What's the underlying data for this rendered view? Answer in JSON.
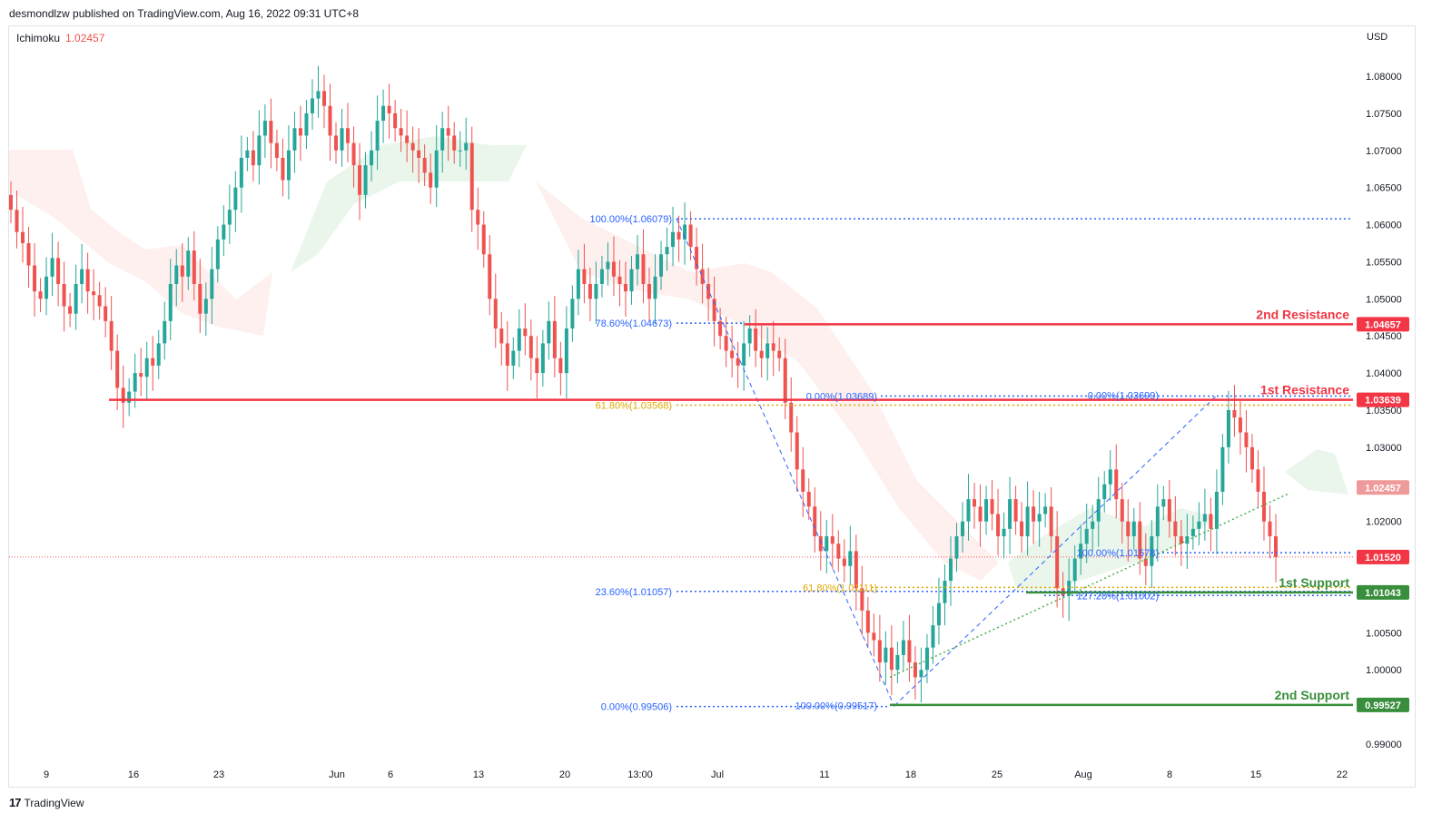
{
  "header": {
    "publish_line": "desmondlzw published on TradingView.com, Aug 16, 2022 09:31 UTC+8"
  },
  "indicator": {
    "name": "Ichimoku",
    "value": "1.02457"
  },
  "axis": {
    "currency": "USD"
  },
  "footer": {
    "brand": "TradingView"
  },
  "colors": {
    "up": "#26a69a",
    "down": "#ef5350",
    "resistance": "#f23645",
    "support": "#388e3c",
    "fib": "#2962ff",
    "fib_gold": "#e0a800",
    "cloud_bull": "#e8f5e9",
    "cloud_bear": "#fdecea"
  },
  "chart_data": {
    "type": "candlestick",
    "y_ticks": [
      "1.08000",
      "1.07500",
      "1.07000",
      "1.06500",
      "1.06000",
      "1.05500",
      "1.05000",
      "1.04500",
      "1.04000",
      "1.03500",
      "1.03000",
      "1.02500",
      "1.02000",
      "1.01500",
      "1.01000",
      "1.00500",
      "1.00000",
      "0.99500",
      "0.99000"
    ],
    "y_tick_values": [
      1.08,
      1.075,
      1.07,
      1.065,
      1.06,
      1.055,
      1.05,
      1.045,
      1.04,
      1.035,
      1.03,
      1.025,
      1.02,
      1.015,
      1.01,
      1.005,
      1.0,
      0.995,
      0.99
    ],
    "ylim": [
      0.9875,
      1.0855
    ],
    "x_ticks": [
      "9",
      "16",
      "23",
      "Jun",
      "6",
      "13",
      "20",
      "13:00",
      "Jul",
      "11",
      "18",
      "25",
      "Aug",
      "8",
      "15",
      "22"
    ],
    "price_labels": [
      {
        "text": "1.04657",
        "value": 1.04657,
        "color": "#f23645"
      },
      {
        "text": "1.03639",
        "value": 1.03639,
        "color": "#f23645"
      },
      {
        "text": "1.02457",
        "value": 1.02457,
        "color": "#ef9a9a"
      },
      {
        "text": "1.01520",
        "value": 1.0152,
        "color": "#f23645"
      },
      {
        "text": "1.01043",
        "value": 1.01043,
        "color": "#388e3c"
      },
      {
        "text": "0.99527",
        "value": 0.99527,
        "color": "#388e3c"
      }
    ],
    "zones": [
      {
        "label": "2nd Resistance",
        "value": 1.04657,
        "color": "#f23645"
      },
      {
        "label": "1st Resistance",
        "value": 1.03639,
        "color": "#f23645"
      },
      {
        "label": "1st Support",
        "value": 1.01043,
        "color": "#388e3c"
      },
      {
        "label": "2nd Support",
        "value": 0.99527,
        "color": "#388e3c"
      }
    ],
    "fib_labels": [
      {
        "text": "100.00%(1.06079)",
        "value": 1.06079,
        "color": "#2962ff"
      },
      {
        "text": "78.60%(1.04673)",
        "value": 1.04673,
        "color": "#2962ff"
      },
      {
        "text": "61.80%(1.03568)",
        "value": 1.03568,
        "color": "#e0a800"
      },
      {
        "text": "23.60%(1.01057)",
        "value": 1.01057,
        "color": "#2962ff"
      },
      {
        "text": "0.00%(0.99506)",
        "value": 0.99506,
        "color": "#2962ff"
      },
      {
        "text": "0.00%(1.03689)",
        "value": 1.03689,
        "color": "#2962ff"
      },
      {
        "text": "0.00%(1.03699)",
        "value": 1.03699,
        "color": "#2962ff"
      },
      {
        "text": "61.80%(1.01111)",
        "value": 1.01111,
        "color": "#e0a800"
      },
      {
        "text": "100.00%(0.99517)",
        "value": 0.99517,
        "color": "#2962ff"
      },
      {
        "text": "100.00%(1.01578)",
        "value": 1.01578,
        "color": "#2962ff"
      },
      {
        "text": "127.20%(1.01002)",
        "value": 1.01002,
        "color": "#2962ff"
      }
    ],
    "current_price": 1.0152,
    "series_closes": [
      1.062,
      1.059,
      1.0575,
      1.0545,
      1.051,
      1.05,
      1.053,
      1.0555,
      1.052,
      1.049,
      1.048,
      1.052,
      1.054,
      1.051,
      1.0505,
      1.049,
      1.047,
      1.043,
      1.038,
      1.036,
      1.0375,
      1.04,
      1.0395,
      1.042,
      1.041,
      1.044,
      1.047,
      1.052,
      1.0545,
      1.053,
      1.0565,
      1.052,
      1.048,
      1.05,
      1.054,
      1.058,
      1.06,
      1.062,
      1.065,
      1.069,
      1.07,
      1.068,
      1.072,
      1.074,
      1.071,
      1.069,
      1.066,
      1.07,
      1.073,
      1.072,
      1.075,
      1.077,
      1.078,
      1.076,
      1.072,
      1.07,
      1.073,
      1.071,
      1.068,
      1.064,
      1.068,
      1.07,
      1.074,
      1.076,
      1.075,
      1.073,
      1.072,
      1.071,
      1.07,
      1.069,
      1.067,
      1.065,
      1.07,
      1.073,
      1.072,
      1.07,
      1.07,
      1.071,
      1.062,
      1.06,
      1.056,
      1.05,
      1.046,
      1.044,
      1.041,
      1.043,
      1.046,
      1.045,
      1.042,
      1.04,
      1.044,
      1.047,
      1.042,
      1.04,
      1.046,
      1.05,
      1.054,
      1.052,
      1.05,
      1.052,
      1.054,
      1.055,
      1.053,
      1.052,
      1.051,
      1.054,
      1.056,
      1.052,
      1.05,
      1.053,
      1.056,
      1.057,
      1.059,
      1.058,
      1.06,
      1.057,
      1.054,
      1.052,
      1.05,
      1.047,
      1.045,
      1.043,
      1.042,
      1.041,
      1.044,
      1.046,
      1.043,
      1.042,
      1.044,
      1.043,
      1.042,
      1.036,
      1.032,
      1.027,
      1.024,
      1.022,
      1.018,
      1.016,
      1.018,
      1.017,
      1.015,
      1.014,
      1.016,
      1.011,
      1.008,
      1.005,
      1.004,
      1.001,
      1.003,
      1.0,
      1.002,
      1.004,
      1.001,
      0.999,
      1.0,
      1.003,
      1.006,
      1.009,
      1.012,
      1.015,
      1.018,
      1.02,
      1.023,
      1.022,
      1.02,
      1.023,
      1.021,
      1.018,
      1.019,
      1.023,
      1.02,
      1.018,
      1.022,
      1.02,
      1.021,
      1.022,
      1.018,
      1.011,
      1.01,
      1.012,
      1.015,
      1.017,
      1.019,
      1.02,
      1.023,
      1.025,
      1.027,
      1.023,
      1.02,
      1.018,
      1.02,
      1.015,
      1.014,
      1.018,
      1.022,
      1.023,
      1.02,
      1.018,
      1.017,
      1.018,
      1.019,
      1.02,
      1.021,
      1.019,
      1.024,
      1.03,
      1.035,
      1.034,
      1.032,
      1.03,
      1.027,
      1.024,
      1.02,
      1.018,
      1.0152
    ]
  }
}
